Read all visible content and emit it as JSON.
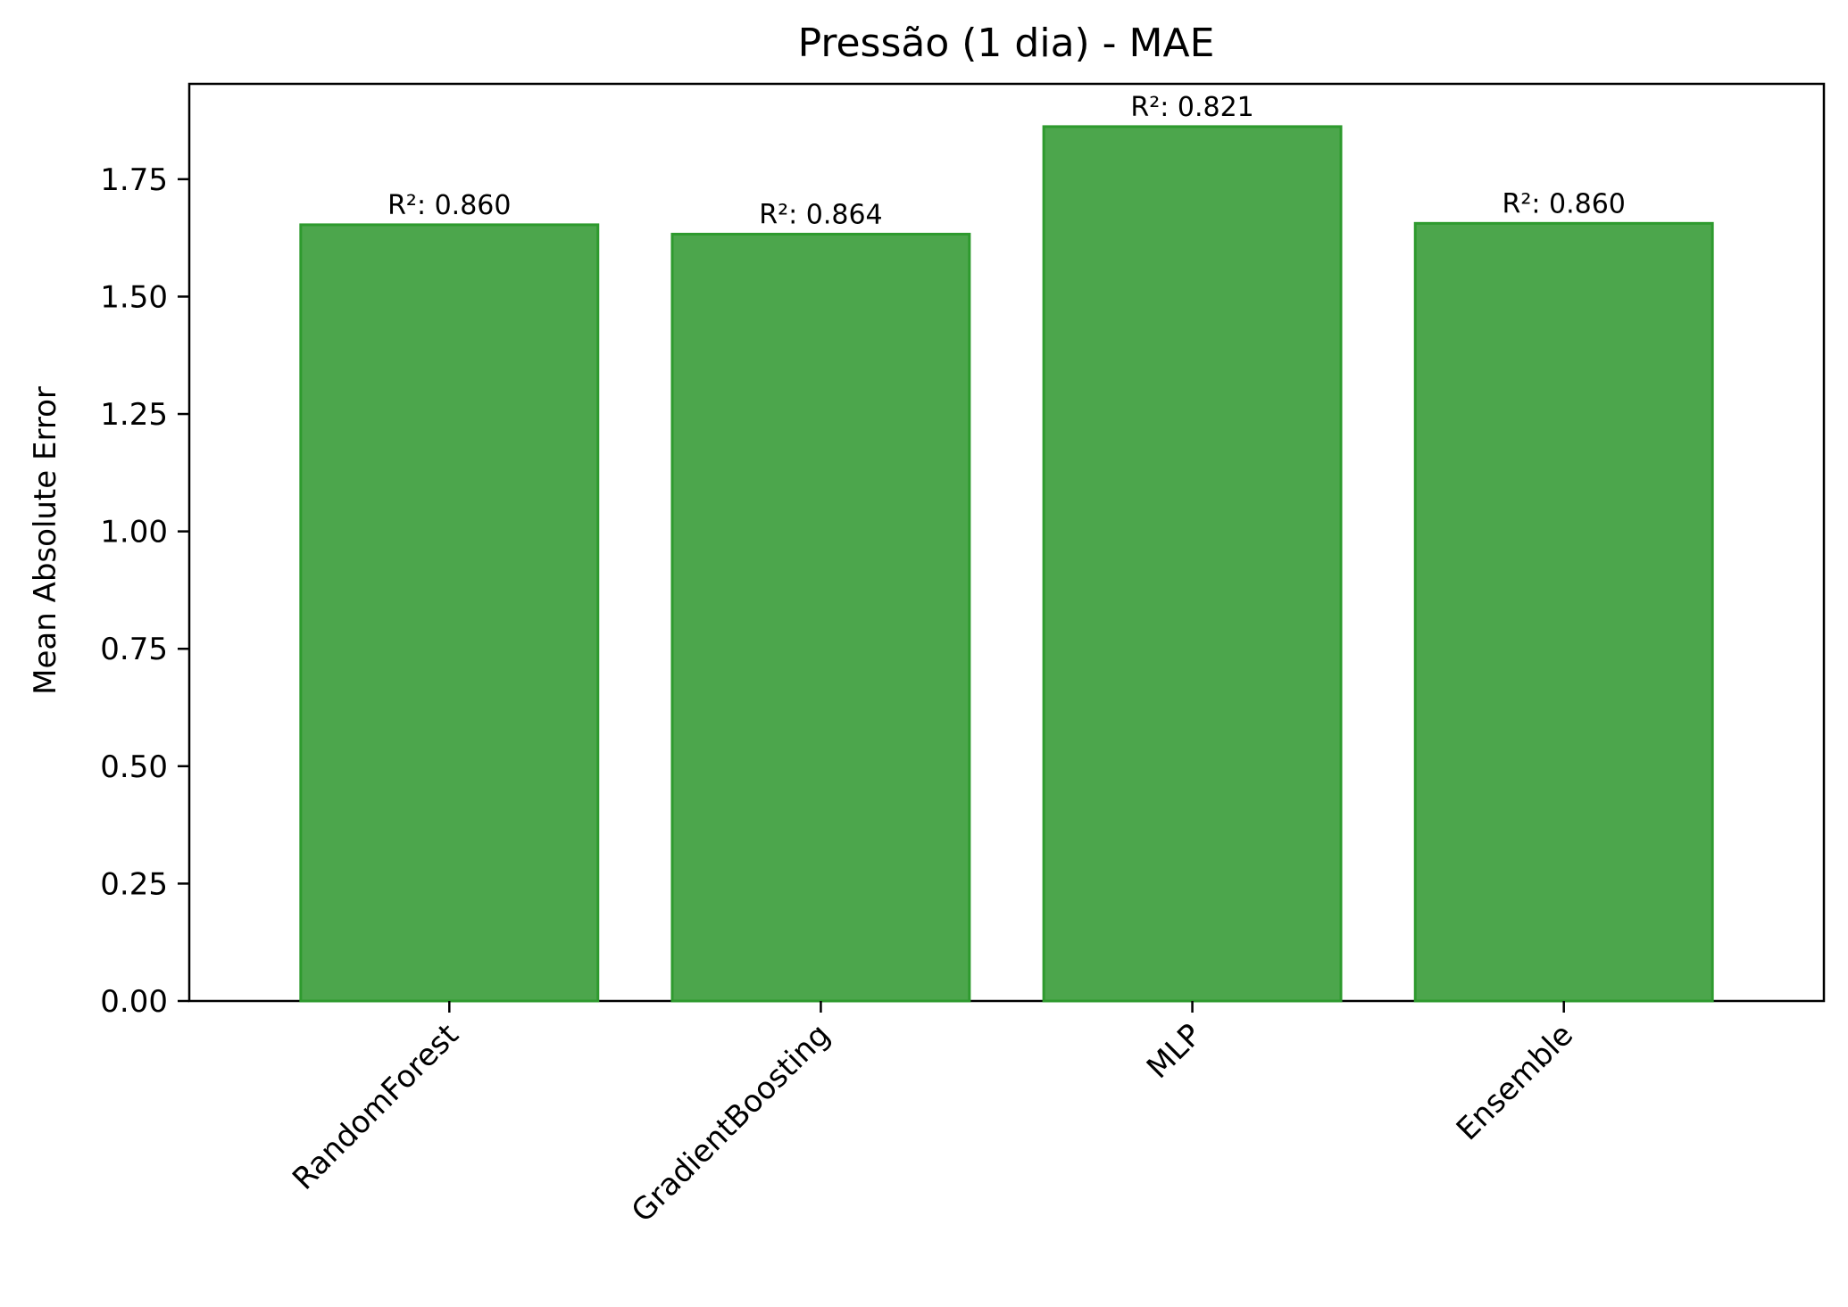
{
  "chart_data": {
    "type": "bar",
    "title": "Pressão (1 dia) - MAE",
    "xlabel": "",
    "ylabel": "Mean Absolute Error",
    "categories": [
      "RandomForest",
      "GradientBoosting",
      "MLP",
      "Ensemble"
    ],
    "values": [
      1.653,
      1.633,
      1.862,
      1.656
    ],
    "bar_labels": [
      "R²: 0.860",
      "R²: 0.864",
      "R²: 0.821",
      "R²: 0.860"
    ],
    "ylim": [
      0,
      1.953
    ],
    "yticks": [
      0.0,
      0.25,
      0.5,
      0.75,
      1.0,
      1.25,
      1.5,
      1.75
    ],
    "ytick_labels": [
      "0.00",
      "0.25",
      "0.50",
      "0.75",
      "1.00",
      "1.25",
      "1.50",
      "1.75"
    ],
    "xtick_rotation": 45,
    "grid": false,
    "legend": "none",
    "colors": {
      "bar_fill": "#4ca64c",
      "bar_edge": "#2e9a2e",
      "axes": "#000000"
    }
  }
}
